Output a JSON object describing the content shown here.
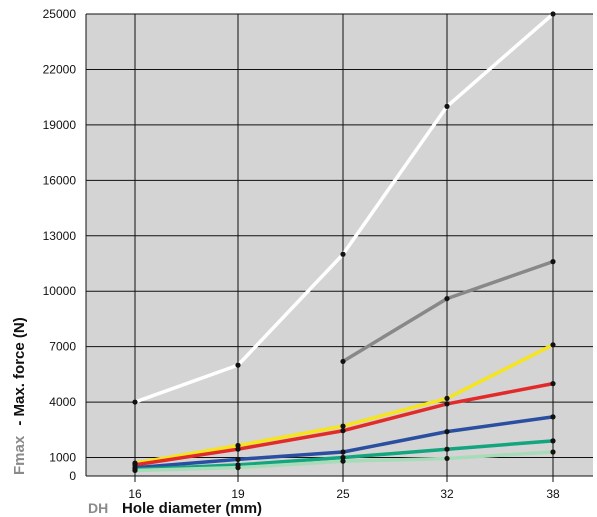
{
  "chart_data": {
    "type": "line",
    "xlabel_symbol": "DH",
    "xlabel": "Hole diameter (mm)",
    "ylabel_symbol": "Fmax",
    "ylabel": "- Max. force (N)",
    "categories": [
      "16",
      "19",
      "25",
      "32",
      "38"
    ],
    "yticks": [
      0,
      1000,
      4000,
      7000,
      10000,
      13000,
      16000,
      19000,
      22000,
      25000
    ],
    "ylim": [
      0,
      25000
    ],
    "grid": true,
    "legend": "none",
    "background": "#d4d4d4",
    "series": [
      {
        "color": "#ffffff",
        "values": [
          4000,
          6000,
          12000,
          20000,
          25000
        ]
      },
      {
        "color": "#888888",
        "values": [
          null,
          null,
          6200,
          9600,
          11600
        ]
      },
      {
        "color": "#f5e51e",
        "values": [
          700,
          1650,
          2700,
          4200,
          7100
        ]
      },
      {
        "color": "#e32a2a",
        "values": [
          600,
          1450,
          2450,
          3900,
          5000
        ]
      },
      {
        "color": "#2a4fa0",
        "values": [
          450,
          900,
          1300,
          2400,
          3200
        ]
      },
      {
        "color": "#13a57e",
        "values": [
          350,
          600,
          1000,
          1450,
          1900
        ]
      },
      {
        "color": "#a8dcb8",
        "values": [
          300,
          450,
          800,
          950,
          1300
        ]
      }
    ]
  }
}
